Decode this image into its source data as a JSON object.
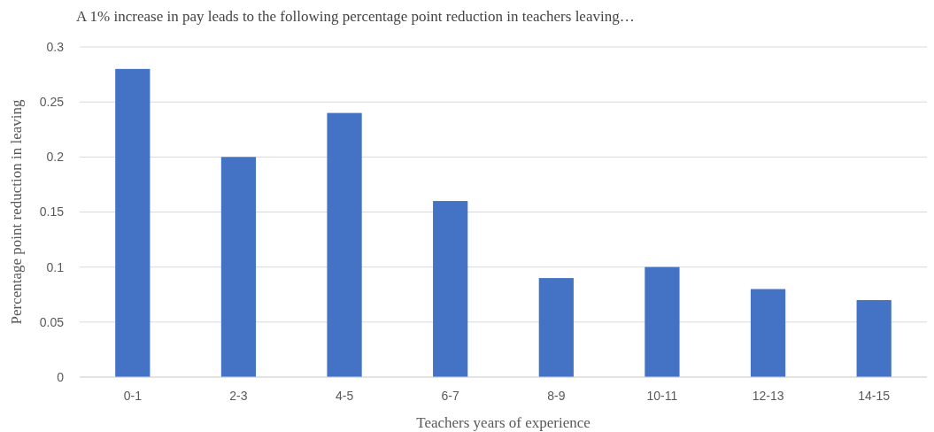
{
  "chart_data": {
    "type": "bar",
    "title": "A 1% increase in pay leads to the following percentage point reduction in teachers leaving…",
    "xlabel": "Teachers years of experience",
    "ylabel": "Percentage point reduction in leaving",
    "categories": [
      "0-1",
      "2-3",
      "4-5",
      "6-7",
      "8-9",
      "10-11",
      "12-13",
      "14-15"
    ],
    "values": [
      0.28,
      0.2,
      0.24,
      0.16,
      0.09,
      0.1,
      0.08,
      0.07
    ],
    "color": "#4472c4",
    "ylim": [
      0,
      0.3
    ],
    "yticks": [
      0,
      0.05,
      0.1,
      0.15,
      0.2,
      0.25,
      0.3
    ],
    "grid": true
  }
}
